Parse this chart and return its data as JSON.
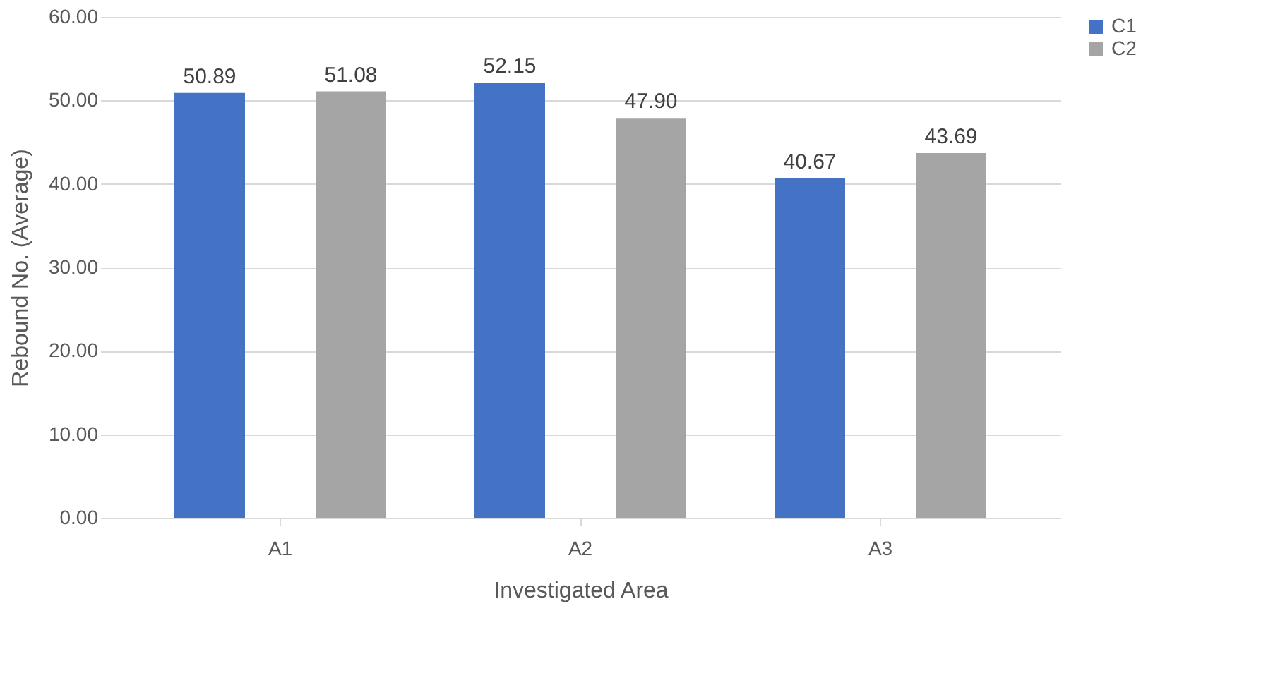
{
  "chart_data": {
    "type": "bar",
    "xlabel": "Investigated Area",
    "ylabel": "Rebound No. (Average)",
    "categories": [
      "A1",
      "A2",
      "A3"
    ],
    "series": [
      {
        "name": "C1",
        "color": "#4472c4",
        "values": [
          50.89,
          52.15,
          40.67
        ],
        "value_labels": [
          "50.89",
          "52.15",
          "40.67"
        ]
      },
      {
        "name": "C2",
        "color": "#a5a5a5",
        "values": [
          51.08,
          47.9,
          43.69
        ],
        "value_labels": [
          "51.08",
          "47.90",
          "43.69"
        ]
      }
    ],
    "ylim": [
      0,
      60
    ],
    "yticks": [
      {
        "value": 0,
        "label": "0.00"
      },
      {
        "value": 10,
        "label": "10.00"
      },
      {
        "value": 20,
        "label": "20.00"
      },
      {
        "value": 30,
        "label": "30.00"
      },
      {
        "value": 40,
        "label": "40.00"
      },
      {
        "value": 50,
        "label": "50.00"
      },
      {
        "value": 60,
        "label": "60.00"
      }
    ],
    "grid": "y",
    "legend": "right"
  }
}
